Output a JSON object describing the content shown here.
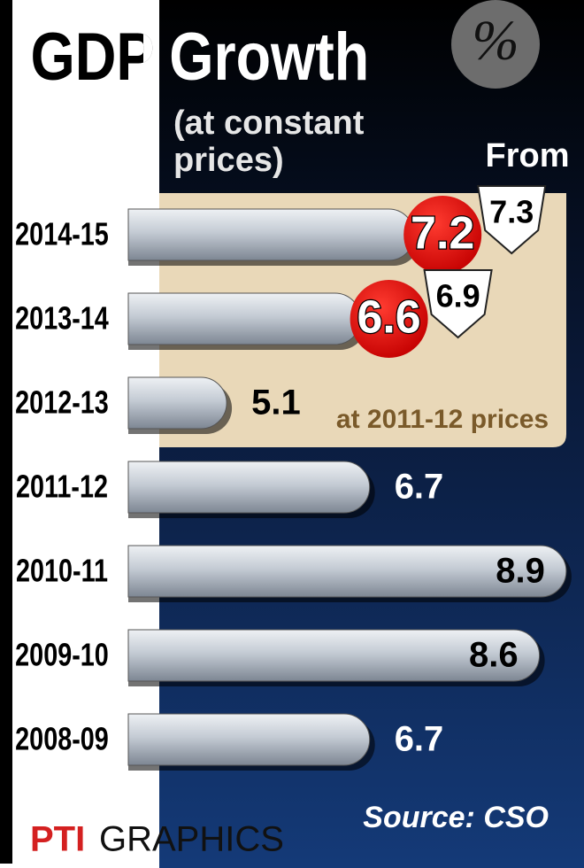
{
  "chart_data": {
    "type": "bar",
    "orientation": "horizontal",
    "title": "GDP Growth",
    "subtitle": "(at constant prices)",
    "unit_badge": "%",
    "categories": [
      "2014-15",
      "2013-14",
      "2012-13",
      "2011-12",
      "2010-11",
      "2009-10",
      "2008-09"
    ],
    "values": [
      7.2,
      6.6,
      5.1,
      6.7,
      8.9,
      8.6,
      6.7
    ],
    "previous": {
      "name": "From",
      "values": [
        7.3,
        6.9,
        null,
        null,
        null,
        null,
        null
      ]
    },
    "highlight_note": "at 2011-12 prices",
    "source": "Source: CSO",
    "credit": [
      "PTI",
      "GRAPHICS"
    ],
    "color": "#b9c1cc",
    "xlim": [
      4,
      9
    ]
  }
}
